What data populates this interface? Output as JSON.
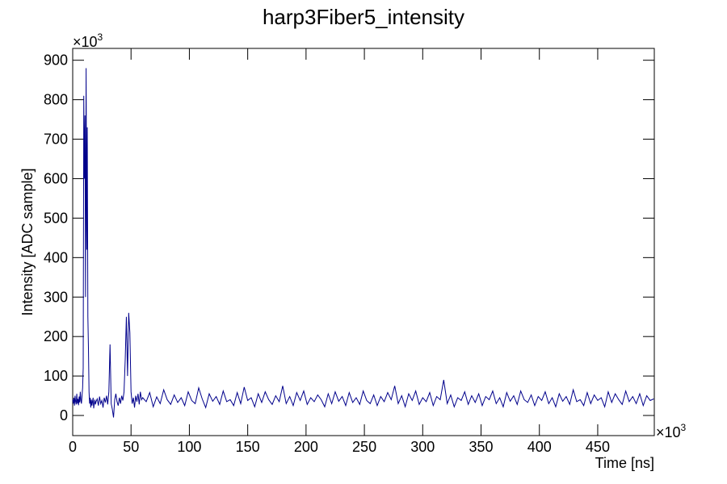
{
  "chart_data": {
    "type": "line",
    "title": "harp3Fiber5_intensity",
    "x_label": "Time [ns]",
    "y_label": "Intensity [ADC sample]",
    "x_multiplier": {
      "base": "×10",
      "exponent": "3"
    },
    "y_multiplier": {
      "base": "×10",
      "exponent": "3"
    },
    "color": "#00008b",
    "xlim": [
      0,
      498.5
    ],
    "ylim": [
      -51,
      930
    ],
    "xticks": [
      0,
      50,
      100,
      150,
      200,
      250,
      300,
      350,
      400,
      450
    ],
    "yticks": [
      0,
      100,
      200,
      300,
      400,
      500,
      600,
      700,
      800,
      900
    ],
    "x": [
      0,
      0.5,
      1,
      1.5,
      2,
      2.5,
      3,
      3.5,
      4,
      4.5,
      5,
      5.5,
      6,
      6.5,
      7,
      7.5,
      8,
      8.5,
      9,
      9.5,
      10,
      10.5,
      11,
      11.5,
      12,
      12.5,
      13,
      13.5,
      14,
      14.5,
      15,
      15.5,
      16,
      16.5,
      17,
      17.5,
      18,
      18.5,
      19,
      19.5,
      20,
      21,
      22,
      23,
      24,
      25,
      26,
      27,
      28,
      29,
      30,
      31,
      32,
      33,
      34,
      35,
      36,
      37,
      38,
      39,
      40,
      41,
      42,
      43,
      44,
      45,
      46,
      47,
      48,
      49,
      50,
      51,
      52,
      53,
      54,
      55,
      56,
      57,
      58,
      59,
      60,
      63,
      66,
      69,
      72,
      75,
      78,
      81,
      84,
      87,
      90,
      93,
      96,
      99,
      102,
      105,
      108,
      111,
      114,
      117,
      120,
      123,
      126,
      129,
      132,
      135,
      138,
      141,
      144,
      147,
      150,
      153,
      156,
      159,
      162,
      165,
      168,
      171,
      174,
      177,
      180,
      183,
      186,
      189,
      192,
      195,
      198,
      201,
      204,
      207,
      210,
      213,
      216,
      219,
      222,
      225,
      228,
      231,
      234,
      237,
      240,
      243,
      246,
      249,
      252,
      255,
      258,
      261,
      264,
      267,
      270,
      273,
      276,
      279,
      282,
      285,
      288,
      291,
      294,
      297,
      300,
      303,
      306,
      309,
      312,
      315,
      318,
      321,
      324,
      327,
      330,
      333,
      336,
      339,
      342,
      345,
      348,
      351,
      354,
      357,
      360,
      363,
      366,
      369,
      372,
      375,
      378,
      381,
      384,
      387,
      390,
      393,
      396,
      399,
      402,
      405,
      408,
      411,
      414,
      417,
      420,
      423,
      426,
      429,
      432,
      435,
      438,
      441,
      444,
      447,
      450,
      453,
      456,
      459,
      462,
      465,
      468,
      471,
      474,
      477,
      480,
      483,
      486,
      489,
      492,
      495,
      498
    ],
    "values": [
      40,
      30,
      45,
      25,
      50,
      35,
      28,
      55,
      30,
      42,
      26,
      48,
      33,
      60,
      38,
      30,
      50,
      70,
      120,
      810,
      600,
      760,
      300,
      880,
      420,
      730,
      250,
      170,
      60,
      30,
      45,
      20,
      40,
      25,
      35,
      45,
      18,
      30,
      40,
      28,
      35,
      42,
      25,
      48,
      30,
      38,
      20,
      45,
      33,
      50,
      28,
      60,
      180,
      30,
      15,
      -5,
      40,
      55,
      35,
      25,
      45,
      30,
      50,
      38,
      60,
      140,
      250,
      100,
      260,
      210,
      60,
      30,
      45,
      20,
      50,
      35,
      55,
      28,
      60,
      40,
      45,
      35,
      58,
      22,
      47,
      30,
      65,
      40,
      28,
      52,
      33,
      45,
      25,
      60,
      38,
      30,
      70,
      42,
      20,
      55,
      36,
      48,
      28,
      62,
      35,
      40,
      25,
      58,
      30,
      72,
      38,
      45,
      22,
      55,
      33,
      60,
      40,
      28,
      50,
      35,
      75,
      30,
      48,
      25,
      58,
      38,
      62,
      28,
      45,
      35,
      52,
      40,
      22,
      55,
      30,
      60,
      36,
      48,
      25,
      58,
      33,
      45,
      28,
      62,
      38,
      30,
      52,
      25,
      48,
      35,
      58,
      40,
      75,
      30,
      50,
      22,
      55,
      38,
      62,
      28,
      45,
      35,
      58,
      25,
      48,
      40,
      90,
      30,
      52,
      22,
      45,
      38,
      60,
      28,
      50,
      33,
      55,
      25,
      48,
      40,
      62,
      30,
      45,
      22,
      58,
      36,
      50,
      28,
      62,
      40,
      33,
      52,
      25,
      48,
      38,
      60,
      30,
      45,
      22,
      55,
      36,
      48,
      28,
      65,
      35,
      40,
      25,
      58,
      30,
      52,
      38,
      45,
      22,
      60,
      33,
      55,
      40,
      28,
      62,
      35,
      48,
      30,
      55,
      25,
      50,
      38,
      42
    ]
  }
}
